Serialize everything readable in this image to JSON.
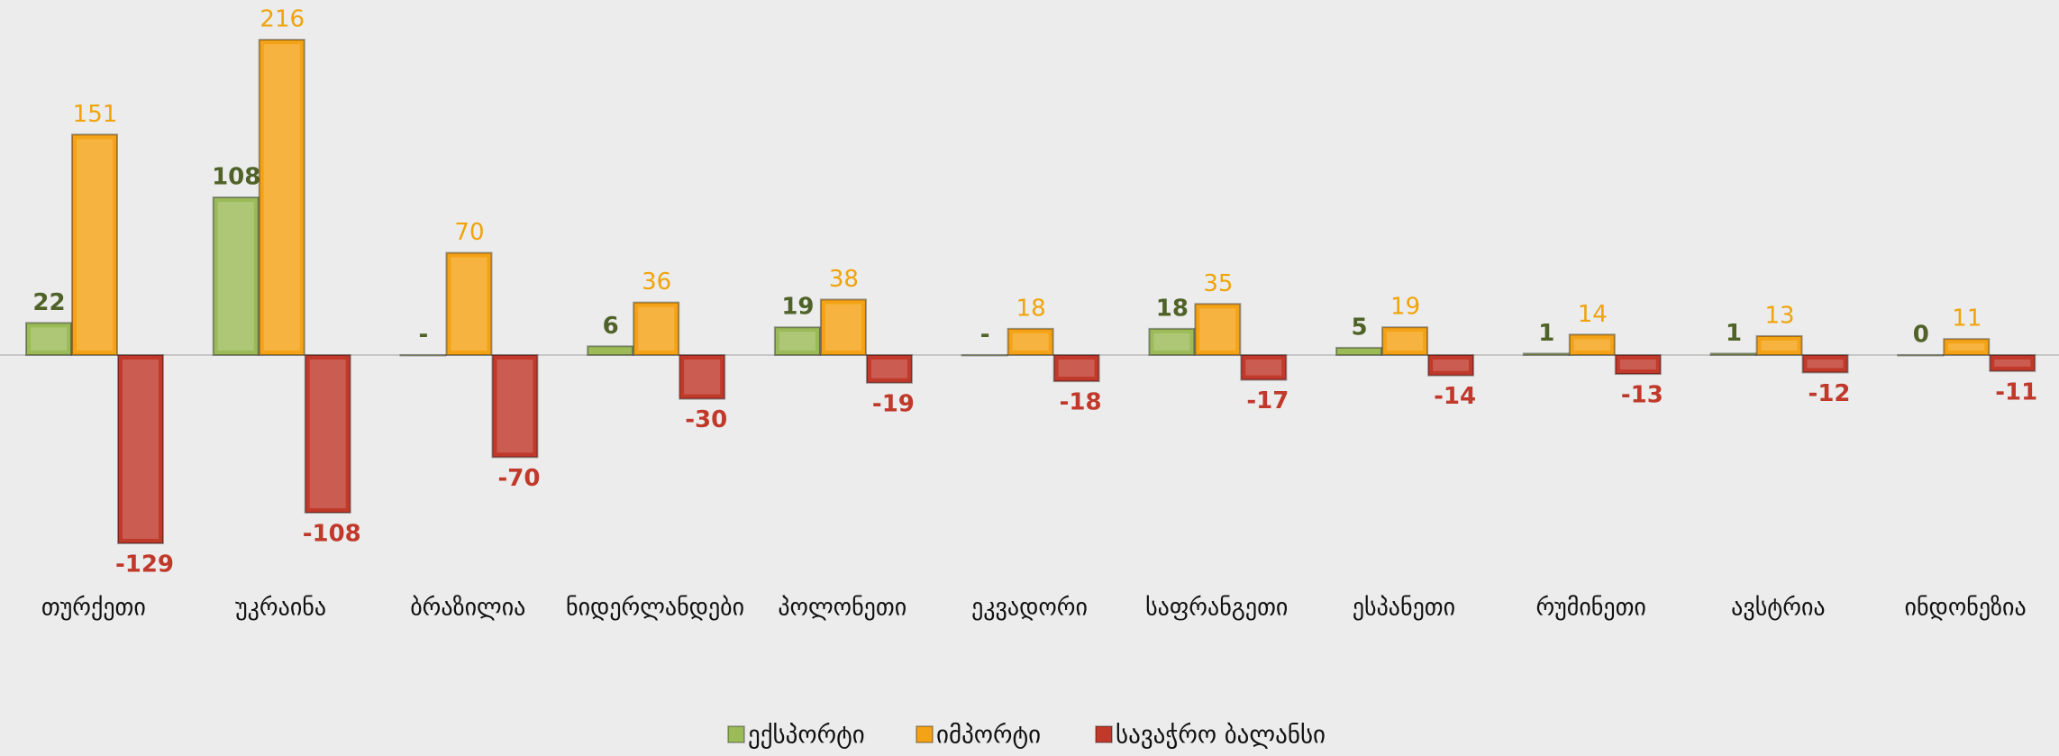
{
  "chart_data": {
    "type": "bar",
    "categories": [
      "თურქეთი",
      "უკრაინა",
      "ბრაზილია",
      "ნიდერლანდები",
      "პოლონეთი",
      "ეკვადორი",
      "საფრანგეთი",
      "ესპანეთი",
      "რუმინეთი",
      "ავსტრია",
      "ინდონეზია"
    ],
    "series": [
      {
        "name": "ექსპორტი",
        "color": "#9bbb59",
        "label_color": "#4f6228",
        "values": [
          22,
          108,
          0,
          6,
          19,
          0,
          18,
          5,
          1,
          1,
          0
        ],
        "value_labels": [
          "22",
          "108",
          "-",
          "6",
          "19",
          "-",
          "18",
          "5",
          "1",
          "1",
          "0"
        ]
      },
      {
        "name": "იმპორტი",
        "color": "#f5a316",
        "label_color": "#f0a30a",
        "values": [
          151,
          216,
          70,
          36,
          38,
          18,
          35,
          19,
          14,
          13,
          11
        ]
      },
      {
        "name": "სავაჭრო ბალანსი",
        "color": "#c0392b",
        "label_color": "#c0392b",
        "values": [
          -129,
          -108,
          -70,
          -30,
          -19,
          -18,
          -17,
          -14,
          -13,
          -12,
          -11
        ]
      }
    ],
    "legend": "bottom"
  }
}
